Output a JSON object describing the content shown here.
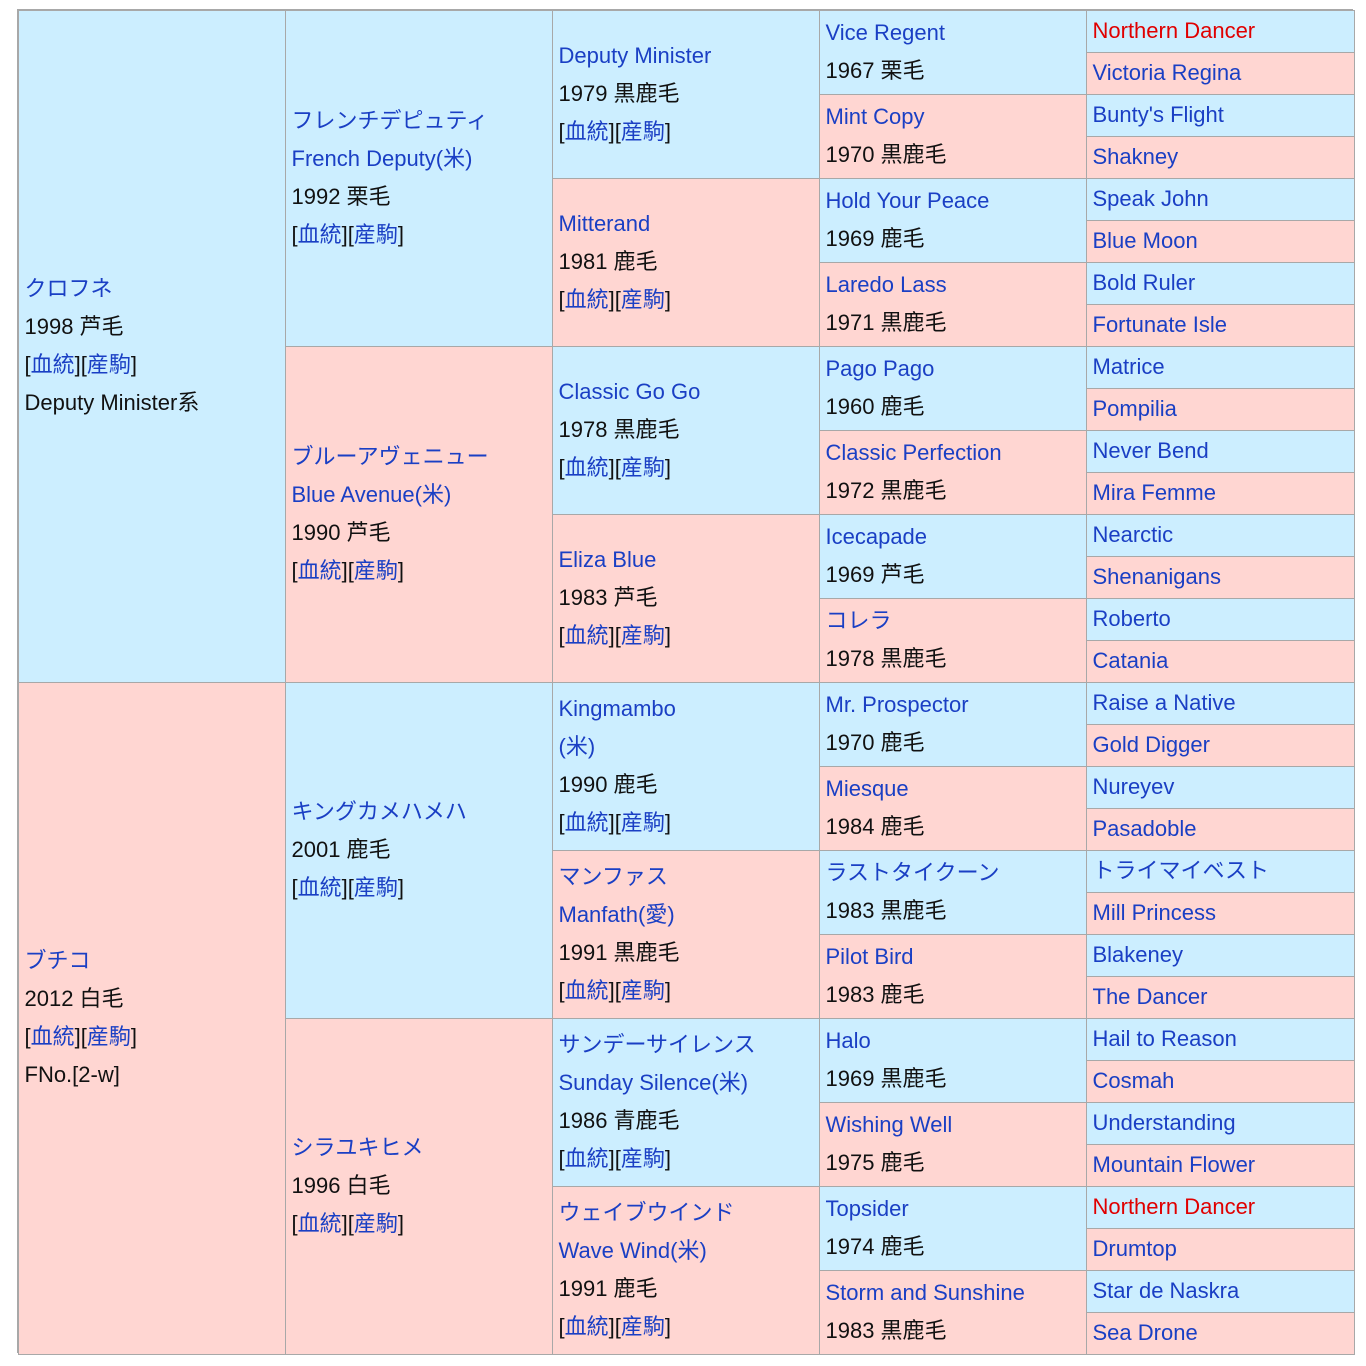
{
  "colors": {
    "male_bg": "#cceeff",
    "female_bg": "#ffd6d2",
    "link": "#1a3fc4",
    "red_link": "#e00000"
  },
  "link_labels": {
    "bloodline": "血統",
    "progeny": "産駒"
  },
  "gen1": [
    {
      "name": "クロフネ",
      "info": "1998 芦毛",
      "extra": "Deputy Minister系"
    },
    {
      "name": "ブチコ",
      "info": "2012 白毛",
      "extra": "FNo.[2-w]"
    }
  ],
  "gen2": [
    {
      "name": "フレンチデピュティ",
      "name2": "French Deputy(米)",
      "info": "1992 栗毛"
    },
    {
      "name": "ブルーアヴェニュー",
      "name2": "Blue Avenue(米)",
      "info": "1990 芦毛"
    },
    {
      "name": "キングカメハメハ",
      "name2": "",
      "info": "2001 鹿毛"
    },
    {
      "name": "シラユキヒメ",
      "name2": "",
      "info": "1996 白毛"
    }
  ],
  "gen3": [
    {
      "name": "Deputy Minister",
      "name2": "",
      "info": "1979 黒鹿毛"
    },
    {
      "name": "Mitterand",
      "name2": "",
      "info": "1981 鹿毛"
    },
    {
      "name": "Classic Go Go",
      "name2": "",
      "info": "1978 黒鹿毛"
    },
    {
      "name": "Eliza Blue",
      "name2": "",
      "info": "1983 芦毛"
    },
    {
      "name": "Kingmambo",
      "name2": "(米)",
      "info": "1990 鹿毛"
    },
    {
      "name": "マンファス",
      "name2": "Manfath(愛)",
      "info": "1991 黒鹿毛"
    },
    {
      "name": "サンデーサイレンス",
      "name2": "Sunday Silence(米)",
      "info": "1986 青鹿毛"
    },
    {
      "name": "ウェイブウインド",
      "name2": "Wave Wind(米)",
      "info": "1991 鹿毛"
    }
  ],
  "gen4": [
    {
      "name": "Vice Regent",
      "info": "1967 栗毛"
    },
    {
      "name": "Mint Copy",
      "info": "1970 黒鹿毛"
    },
    {
      "name": "Hold Your Peace",
      "info": "1969 鹿毛"
    },
    {
      "name": "Laredo Lass",
      "info": "1971 黒鹿毛"
    },
    {
      "name": "Pago Pago",
      "info": "1960 鹿毛"
    },
    {
      "name": "Classic Perfection",
      "info": "1972 黒鹿毛"
    },
    {
      "name": "Icecapade",
      "info": "1969 芦毛"
    },
    {
      "name": "コレラ",
      "info": "1978 黒鹿毛"
    },
    {
      "name": "Mr. Prospector",
      "info": "1970 鹿毛"
    },
    {
      "name": "Miesque",
      "info": "1984 鹿毛"
    },
    {
      "name": "ラストタイクーン",
      "info": "1983 黒鹿毛"
    },
    {
      "name": "Pilot Bird",
      "info": "1983 鹿毛"
    },
    {
      "name": "Halo",
      "info": "1969 黒鹿毛"
    },
    {
      "name": "Wishing Well",
      "info": "1975 鹿毛"
    },
    {
      "name": "Topsider",
      "info": "1974 鹿毛"
    },
    {
      "name": "Storm and Sunshine",
      "info": "1983 黒鹿毛"
    }
  ],
  "gen5": [
    {
      "name": "Northern Dancer",
      "red": true
    },
    {
      "name": "Victoria Regina"
    },
    {
      "name": "Bunty's Flight"
    },
    {
      "name": "Shakney"
    },
    {
      "name": "Speak John"
    },
    {
      "name": "Blue Moon"
    },
    {
      "name": "Bold Ruler"
    },
    {
      "name": "Fortunate Isle"
    },
    {
      "name": "Matrice"
    },
    {
      "name": "Pompilia"
    },
    {
      "name": "Never Bend"
    },
    {
      "name": "Mira Femme"
    },
    {
      "name": "Nearctic"
    },
    {
      "name": "Shenanigans"
    },
    {
      "name": "Roberto"
    },
    {
      "name": "Catania"
    },
    {
      "name": "Raise a Native"
    },
    {
      "name": "Gold Digger"
    },
    {
      "name": "Nureyev"
    },
    {
      "name": "Pasadoble"
    },
    {
      "name": "トライマイベスト"
    },
    {
      "name": "Mill Princess"
    },
    {
      "name": "Blakeney"
    },
    {
      "name": "The Dancer"
    },
    {
      "name": "Hail to Reason"
    },
    {
      "name": "Cosmah"
    },
    {
      "name": "Understanding"
    },
    {
      "name": "Mountain Flower"
    },
    {
      "name": "Northern Dancer",
      "red": true
    },
    {
      "name": "Drumtop"
    },
    {
      "name": "Star de Naskra"
    },
    {
      "name": "Sea Drone"
    }
  ]
}
